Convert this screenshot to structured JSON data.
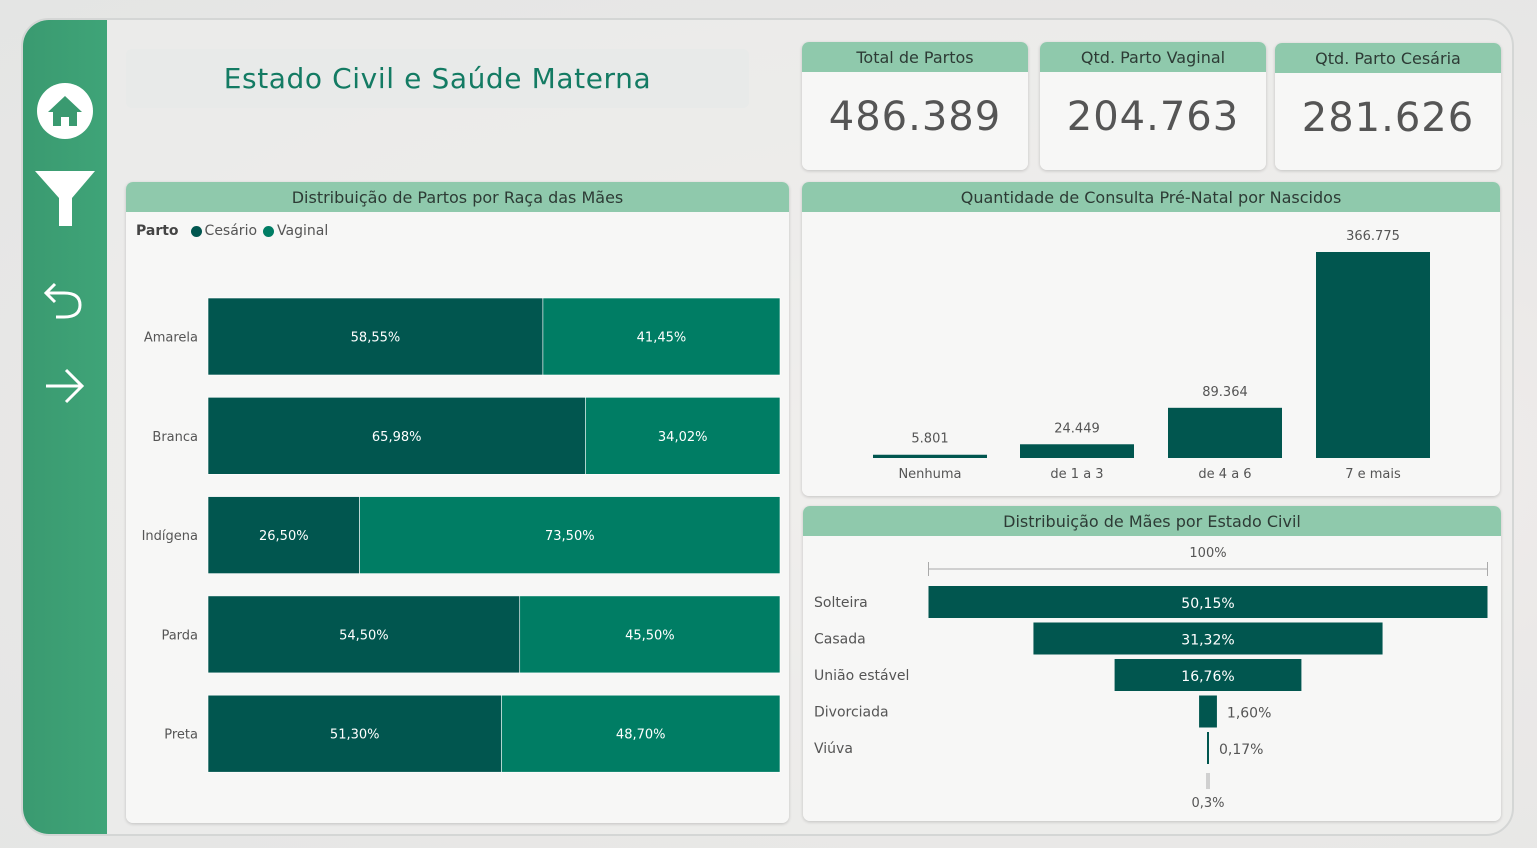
{
  "page_title": "Estado Civil e Saúde Materna",
  "nav": {
    "home_icon": "home-icon",
    "filter_icon": "filter-icon",
    "back_icon": "undo-arrow-icon",
    "forward_icon": "right-arrow-icon"
  },
  "kpis": [
    {
      "label": "Total de Partos",
      "value": "486.389"
    },
    {
      "label": "Qtd. Parto Vaginal",
      "value": "204.763"
    },
    {
      "label": "Qtd. Parto Cesária",
      "value": "281.626"
    }
  ],
  "colors": {
    "cesario": "#01564f",
    "vaginal": "#007d64",
    "header": "#8fc9ac",
    "sidebar": "#3fa478",
    "title": "#137b63"
  },
  "chart_data": [
    {
      "type": "bar",
      "orientation": "horizontal-stacked-100",
      "title": "Distribuição de Partos por Raça das Mães",
      "legend_title": "Parto",
      "categories": [
        "Amarela",
        "Branca",
        "Indígena",
        "Parda",
        "Preta"
      ],
      "series": [
        {
          "name": "Cesário",
          "values": [
            58.55,
            65.98,
            26.5,
            54.5,
            51.3
          ],
          "labels": [
            "58,55%",
            "65,98%",
            "26,50%",
            "54,50%",
            "51,30%"
          ]
        },
        {
          "name": "Vaginal",
          "values": [
            41.45,
            34.02,
            73.5,
            45.5,
            48.7
          ],
          "labels": [
            "41,45%",
            "34,02%",
            "73,50%",
            "45,50%",
            "48,70%"
          ]
        }
      ]
    },
    {
      "type": "bar",
      "title": "Quantidade de Consulta Pré-Natal por Nascidos",
      "categories": [
        "Nenhuma",
        "de 1 a 3",
        "de 4 a 6",
        "7 e mais"
      ],
      "values": [
        5801,
        24449,
        89364,
        366775
      ],
      "labels": [
        "5.801",
        "24.449",
        "89.364",
        "366.775"
      ]
    },
    {
      "type": "bar",
      "orientation": "funnel",
      "title": "Distribuição de Mães por Estado Civil",
      "top_label": "100%",
      "bottom_label": "0,3%",
      "categories": [
        "Solteira",
        "Casada",
        "União estável",
        "Divorciada",
        "Viúva"
      ],
      "values": [
        50.15,
        31.32,
        16.76,
        1.6,
        0.17
      ],
      "labels": [
        "50,15%",
        "31,32%",
        "16,76%",
        "1,60%",
        "0,17%"
      ]
    }
  ]
}
